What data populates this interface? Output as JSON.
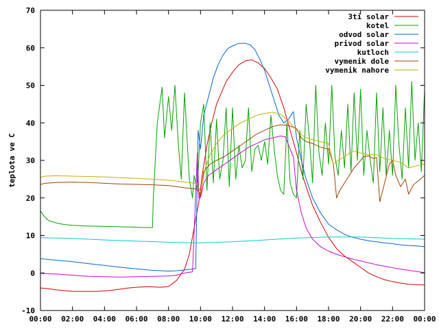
{
  "chart_data": {
    "type": "line",
    "ylabel": "teplota ve C",
    "xlabel": "",
    "title": "",
    "ylim": [
      -10,
      70
    ],
    "xlim": [
      0,
      24
    ],
    "yticks": [
      "-10",
      "0",
      "10",
      "20",
      "30",
      "40",
      "50",
      "60",
      "70"
    ],
    "xticks": [
      "00:00",
      "02:00",
      "04:00",
      "06:00",
      "08:00",
      "10:00",
      "12:00",
      "14:00",
      "16:00",
      "18:00",
      "20:00",
      "22:00",
      "00:00"
    ],
    "grid": false,
    "legend_position": "top-right",
    "series": [
      {
        "name": "3ti solar",
        "color": "#cc0000",
        "x": [
          0,
          0.5,
          1,
          1.5,
          2,
          2.5,
          3,
          3.5,
          4,
          4.5,
          5,
          5.5,
          6,
          6.5,
          7,
          7.5,
          8,
          8.5,
          9,
          9.3,
          9.6,
          9.9,
          10.1,
          10.4,
          10.7,
          11,
          11.3,
          11.6,
          12,
          12.4,
          12.8,
          13.2,
          13.6,
          14,
          14.4,
          14.8,
          15.2,
          15.6,
          16,
          16.3,
          16.6,
          17,
          17.5,
          18,
          18.5,
          19,
          19.5,
          20,
          20.5,
          21,
          21.5,
          22,
          22.5,
          23,
          23.5,
          24
        ],
        "y": [
          -4,
          -4.2,
          -4.5,
          -4.7,
          -4.9,
          -4.9,
          -4.9,
          -4.9,
          -4.8,
          -4.6,
          -4.3,
          -4,
          -3.8,
          -3.7,
          -3.7,
          -3.8,
          -3.6,
          -2,
          1,
          5,
          12,
          19,
          26,
          34,
          40,
          45,
          48,
          51,
          53.5,
          55.5,
          56.5,
          56.8,
          56,
          54.5,
          52,
          49,
          44,
          38,
          32,
          27,
          23,
          18,
          13.5,
          9.5,
          6.5,
          4.5,
          3,
          1.5,
          0,
          -1,
          -1.8,
          -2.3,
          -2.7,
          -3,
          -3.1,
          -3.2
        ]
      },
      {
        "name": "kotel",
        "color": "#00a000",
        "x": [
          0,
          0.25,
          0.5,
          1,
          1.5,
          2,
          3,
          4,
          5,
          6,
          6.5,
          7,
          7.05,
          7.3,
          7.6,
          7.75,
          8,
          8.2,
          8.4,
          8.6,
          8.8,
          9,
          9.3,
          9.5,
          9.6,
          9.8,
          10,
          10.2,
          10.4,
          10.6,
          10.8,
          11,
          11.2,
          11.4,
          11.6,
          11.8,
          12,
          12.2,
          12.4,
          12.6,
          12.8,
          13,
          13.2,
          13.4,
          13.6,
          13.8,
          14,
          14.2,
          14.4,
          14.6,
          14.8,
          15,
          15.2,
          15.4,
          15.6,
          15.8,
          16,
          16.2,
          16.4,
          16.6,
          16.8,
          17,
          17.2,
          17.4,
          17.6,
          17.8,
          18,
          18.2,
          18.4,
          18.6,
          18.8,
          19,
          19.2,
          19.4,
          19.6,
          19.8,
          20,
          20.2,
          20.4,
          20.6,
          20.8,
          21,
          21.2,
          21.4,
          21.6,
          21.8,
          22,
          22.2,
          22.4,
          22.6,
          22.8,
          23,
          23.2,
          23.4,
          23.6,
          23.8,
          24
        ],
        "y": [
          16.5,
          15,
          14,
          13.3,
          12.9,
          12.7,
          12.5,
          12.4,
          12.3,
          12.2,
          12.1,
          12.1,
          20,
          40,
          49.5,
          36,
          47,
          38,
          50,
          35,
          25,
          48,
          25,
          20,
          26,
          22,
          40,
          45,
          22,
          40,
          24,
          41,
          25,
          30,
          44,
          23,
          44,
          25,
          34,
          28,
          30,
          44,
          27,
          33,
          34,
          30,
          35,
          29,
          42,
          33,
          26,
          22,
          21,
          40,
          24,
          21,
          20,
          38,
          25,
          45,
          36,
          24,
          50,
          32,
          26,
          40,
          29,
          50,
          31,
          26,
          38,
          28,
          45,
          27,
          48,
          30,
          49,
          26,
          38,
          30,
          24,
          48,
          27,
          44,
          26,
          38,
          26,
          50,
          34,
          25,
          44,
          28,
          51,
          30,
          40,
          27,
          49
        ]
      },
      {
        "name": "odvod solar",
        "color": "#0066cc",
        "x": [
          0,
          1,
          2,
          3,
          4,
          5,
          6,
          7,
          8,
          8.5,
          9,
          9.4,
          9.7,
          9.85,
          10,
          10.2,
          10.5,
          10.8,
          11.1,
          11.4,
          11.7,
          12,
          12.4,
          12.8,
          13.1,
          13.4,
          13.7,
          14,
          14.3,
          14.6,
          14.9,
          15.2,
          15.5,
          15.8,
          16,
          16.3,
          16.6,
          17,
          17.5,
          18,
          18.5,
          19,
          19.5,
          20,
          20.5,
          21,
          21.5,
          22,
          22.5,
          23,
          23.5,
          24
        ],
        "y": [
          3.8,
          3.4,
          3,
          2.5,
          2,
          1.5,
          1.1,
          0.7,
          0.5,
          0.6,
          0.8,
          1,
          1.2,
          38,
          33,
          42,
          47,
          52,
          55.5,
          58,
          59.8,
          60.5,
          61.2,
          61.2,
          60.8,
          59.5,
          57,
          54,
          50,
          46,
          42,
          40,
          41,
          43,
          36,
          30,
          25,
          20,
          16,
          13,
          11.5,
          10.3,
          9.5,
          9,
          8.6,
          8.3,
          8,
          7.8,
          7.5,
          7.3,
          7.2,
          7
        ]
      },
      {
        "name": "privod solar",
        "color": "#cc00cc",
        "x": [
          0,
          1,
          2,
          3,
          4,
          5,
          6,
          7,
          8,
          8.5,
          9,
          9.5,
          9.8,
          9.9,
          10,
          10.2,
          10.5,
          11,
          11.5,
          12,
          12.5,
          13,
          13.5,
          14,
          14.5,
          15,
          15.3,
          15.6,
          15.8,
          16,
          16.3,
          16.6,
          17,
          17.5,
          18,
          18.5,
          19,
          19.5,
          20,
          20.5,
          21,
          21.5,
          22,
          22.5,
          23,
          23.5,
          24
        ],
        "y": [
          -0.1,
          -0.3,
          -0.6,
          -0.9,
          -1,
          -1.1,
          -1,
          -0.9,
          -0.8,
          -0.6,
          0,
          0.3,
          32,
          20,
          20,
          24,
          26,
          27.5,
          29,
          30.5,
          32,
          33.5,
          34.5,
          35.5,
          36,
          36.5,
          36.3,
          33,
          31,
          22,
          16,
          12,
          9,
          7,
          5.8,
          5,
          4.3,
          3.7,
          3.2,
          2.7,
          2.2,
          1.8,
          1.4,
          1,
          0.7,
          0.4,
          0.1
        ]
      },
      {
        "name": "kutloch",
        "color": "#00cccc",
        "x": [
          0,
          2,
          4,
          6,
          8,
          10,
          12,
          14,
          16,
          18,
          20,
          22,
          24
        ],
        "y": [
          9.4,
          9.2,
          8.8,
          8.5,
          8.2,
          8.0,
          8.3,
          8.8,
          9.3,
          9.6,
          9.6,
          9.2,
          9
        ]
      },
      {
        "name": "vymenik dole",
        "color": "#a04000",
        "x": [
          0,
          0.3,
          1,
          2,
          3,
          4,
          5,
          6,
          7,
          8,
          8.5,
          9,
          9.5,
          9.8,
          10,
          10.2,
          10.6,
          11,
          11.5,
          12,
          12.5,
          13,
          13.5,
          14,
          14.5,
          15,
          15.5,
          16,
          16.3,
          16.6,
          17,
          17.5,
          18,
          18.3,
          18.5,
          18.7,
          19,
          19.3,
          19.6,
          20,
          20.2,
          20.5,
          20.8,
          21,
          21.2,
          21.5,
          21.8,
          22,
          22.2,
          22.5,
          22.8,
          23,
          23.3,
          23.6,
          24
        ],
        "y": [
          23.6,
          23.9,
          24.1,
          24.2,
          24.1,
          23.9,
          23.7,
          23.6,
          23.5,
          23.3,
          23,
          22.7,
          22.5,
          22.3,
          20.5,
          27,
          29,
          30,
          31,
          32.5,
          34,
          35.5,
          37,
          38,
          39,
          39.5,
          39.3,
          38.5,
          36,
          35,
          34.5,
          33.5,
          33,
          29,
          20,
          22,
          24,
          26,
          28,
          30,
          31,
          31.2,
          30.5,
          30.8,
          19,
          24,
          29,
          30,
          26,
          23,
          25,
          21,
          23.5,
          24.5,
          26
        ]
      },
      {
        "name": "vymenik nahore",
        "color": "#c0b000",
        "x": [
          0,
          0.3,
          1,
          2,
          3,
          4,
          5,
          6,
          7,
          8,
          8.5,
          9,
          9.5,
          9.8,
          10,
          10.3,
          10.6,
          11,
          11.5,
          12,
          12.5,
          13,
          13.5,
          14,
          14.5,
          15,
          15.5,
          16,
          16.5,
          17,
          17.5,
          18,
          18.3,
          18.6,
          19,
          19.5,
          20,
          20.5,
          21,
          21.5,
          22,
          22.5,
          23,
          23.5,
          24
        ],
        "y": [
          25.5,
          25.8,
          25.9,
          25.8,
          25.7,
          25.6,
          25.4,
          25.2,
          25,
          24.7,
          24.5,
          24.2,
          24,
          23.8,
          21.5,
          28,
          31.5,
          34.5,
          37,
          38.5,
          40,
          41,
          42,
          42.5,
          42.8,
          42.3,
          40.5,
          38,
          36.2,
          35.5,
          35,
          34.5,
          29,
          30,
          31,
          32.5,
          32,
          31.5,
          31.5,
          30.5,
          30,
          29.5,
          28,
          28.5,
          29
        ]
      }
    ]
  }
}
